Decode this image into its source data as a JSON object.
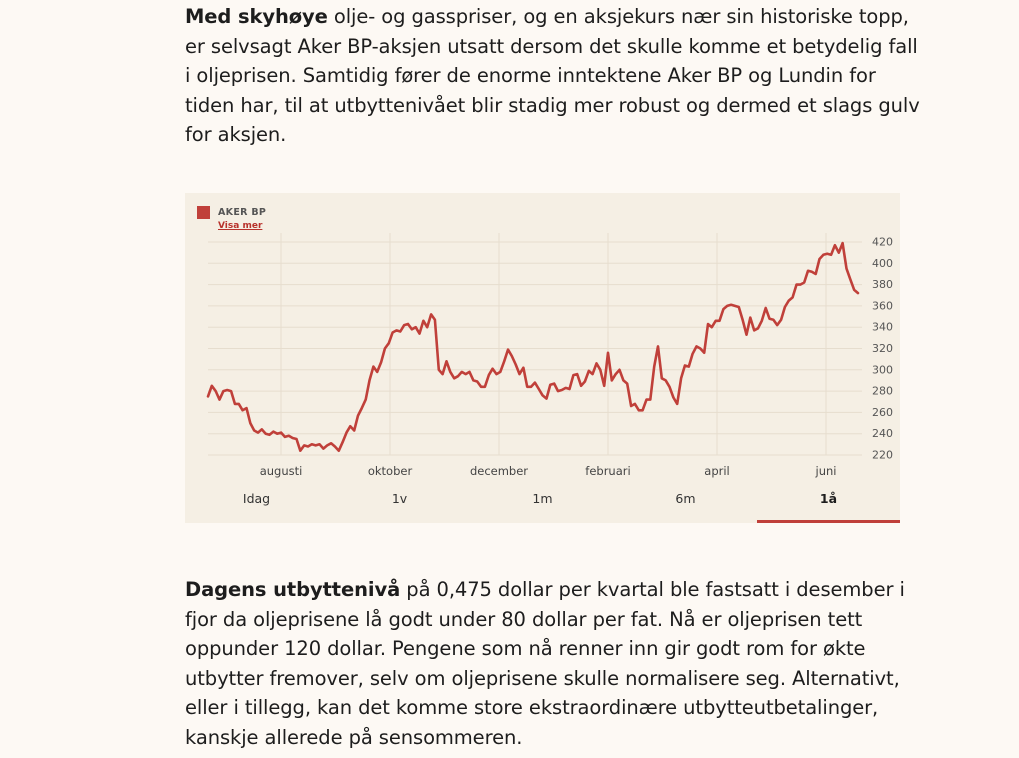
{
  "article": {
    "p1_bold": "Med skyhøye",
    "p1_text": " olje- og gasspriser, og en aksjekurs nær sin historiske topp, er selvsagt Aker BP-aksjen utsatt dersom det skulle komme et betydelig fall i oljeprisen. Samtidig fører de enorme inntektene Aker BP og Lundin for tiden har, til at utbyttenivået blir stadig mer robust og dermed et slags gulv for aksjen.",
    "p2_bold": "Dagens utbyttenivå",
    "p2_text": " på 0,475 dollar per kvartal ble fastsatt i desember i fjor da oljeprisene lå godt under 80 dollar per fat. Nå er oljeprisen tett oppunder 120 dollar. Pengene som nå renner inn gir godt rom for økte utbytter fremover, selv om oljeprisene skulle normalisere seg. Alternativt, eller i tillegg, kan det komme store ekstraordinære utbytteutbetalinger, kanskje allerede på sensommeren."
  },
  "widget": {
    "legend_label": "AKER BP",
    "legend_link": "Visa mer",
    "line_color": "#c0403a",
    "tabs": [
      {
        "label": "Idag",
        "active": false
      },
      {
        "label": "1v",
        "active": false
      },
      {
        "label": "1m",
        "active": false
      },
      {
        "label": "6m",
        "active": false
      },
      {
        "label": "1å",
        "active": true
      }
    ]
  },
  "chart_data": {
    "type": "line",
    "series": [
      {
        "name": "AKER BP",
        "values": [
          275,
          285,
          280,
          272,
          280,
          281,
          280,
          268,
          268,
          262,
          264,
          250,
          243,
          241,
          244,
          240,
          239,
          242,
          240,
          241,
          237,
          238,
          236,
          235,
          224,
          229,
          228,
          230,
          229,
          230,
          226,
          229,
          231,
          228,
          224,
          232,
          241,
          247,
          243,
          257,
          264,
          272,
          290,
          303,
          298,
          307,
          320,
          325,
          335,
          337,
          336,
          342,
          343,
          338,
          340,
          334,
          346,
          340,
          352,
          347,
          300,
          296,
          308,
          298,
          292,
          294,
          298,
          296,
          298,
          290,
          289,
          284,
          284,
          295,
          301,
          296,
          298,
          308,
          319,
          313,
          305,
          296,
          302,
          284,
          284,
          288,
          282,
          276,
          273,
          286,
          287,
          280,
          281,
          283,
          282,
          295,
          296,
          285,
          289,
          299,
          296,
          306,
          300,
          285,
          316,
          290,
          296,
          300,
          290,
          287,
          266,
          268,
          262,
          262,
          272,
          272,
          303,
          322,
          292,
          290,
          284,
          274,
          268,
          292,
          304,
          303,
          315,
          322,
          320,
          316,
          343,
          340,
          346,
          346,
          357,
          360,
          361,
          360,
          359,
          347,
          333,
          349,
          337,
          339,
          346,
          358,
          348,
          347,
          342,
          347,
          359,
          365,
          368,
          380,
          380,
          382,
          393,
          392,
          390,
          404,
          408,
          409,
          408,
          417,
          410,
          419,
          395,
          385,
          375,
          372
        ]
      }
    ],
    "x_labels": [
      "augusti",
      "oktober",
      "december",
      "februari",
      "april",
      "juni"
    ],
    "y_ticks": [
      220,
      240,
      260,
      280,
      300,
      320,
      340,
      360,
      380,
      400,
      420
    ],
    "ylim": [
      220,
      420
    ],
    "grid": true
  }
}
